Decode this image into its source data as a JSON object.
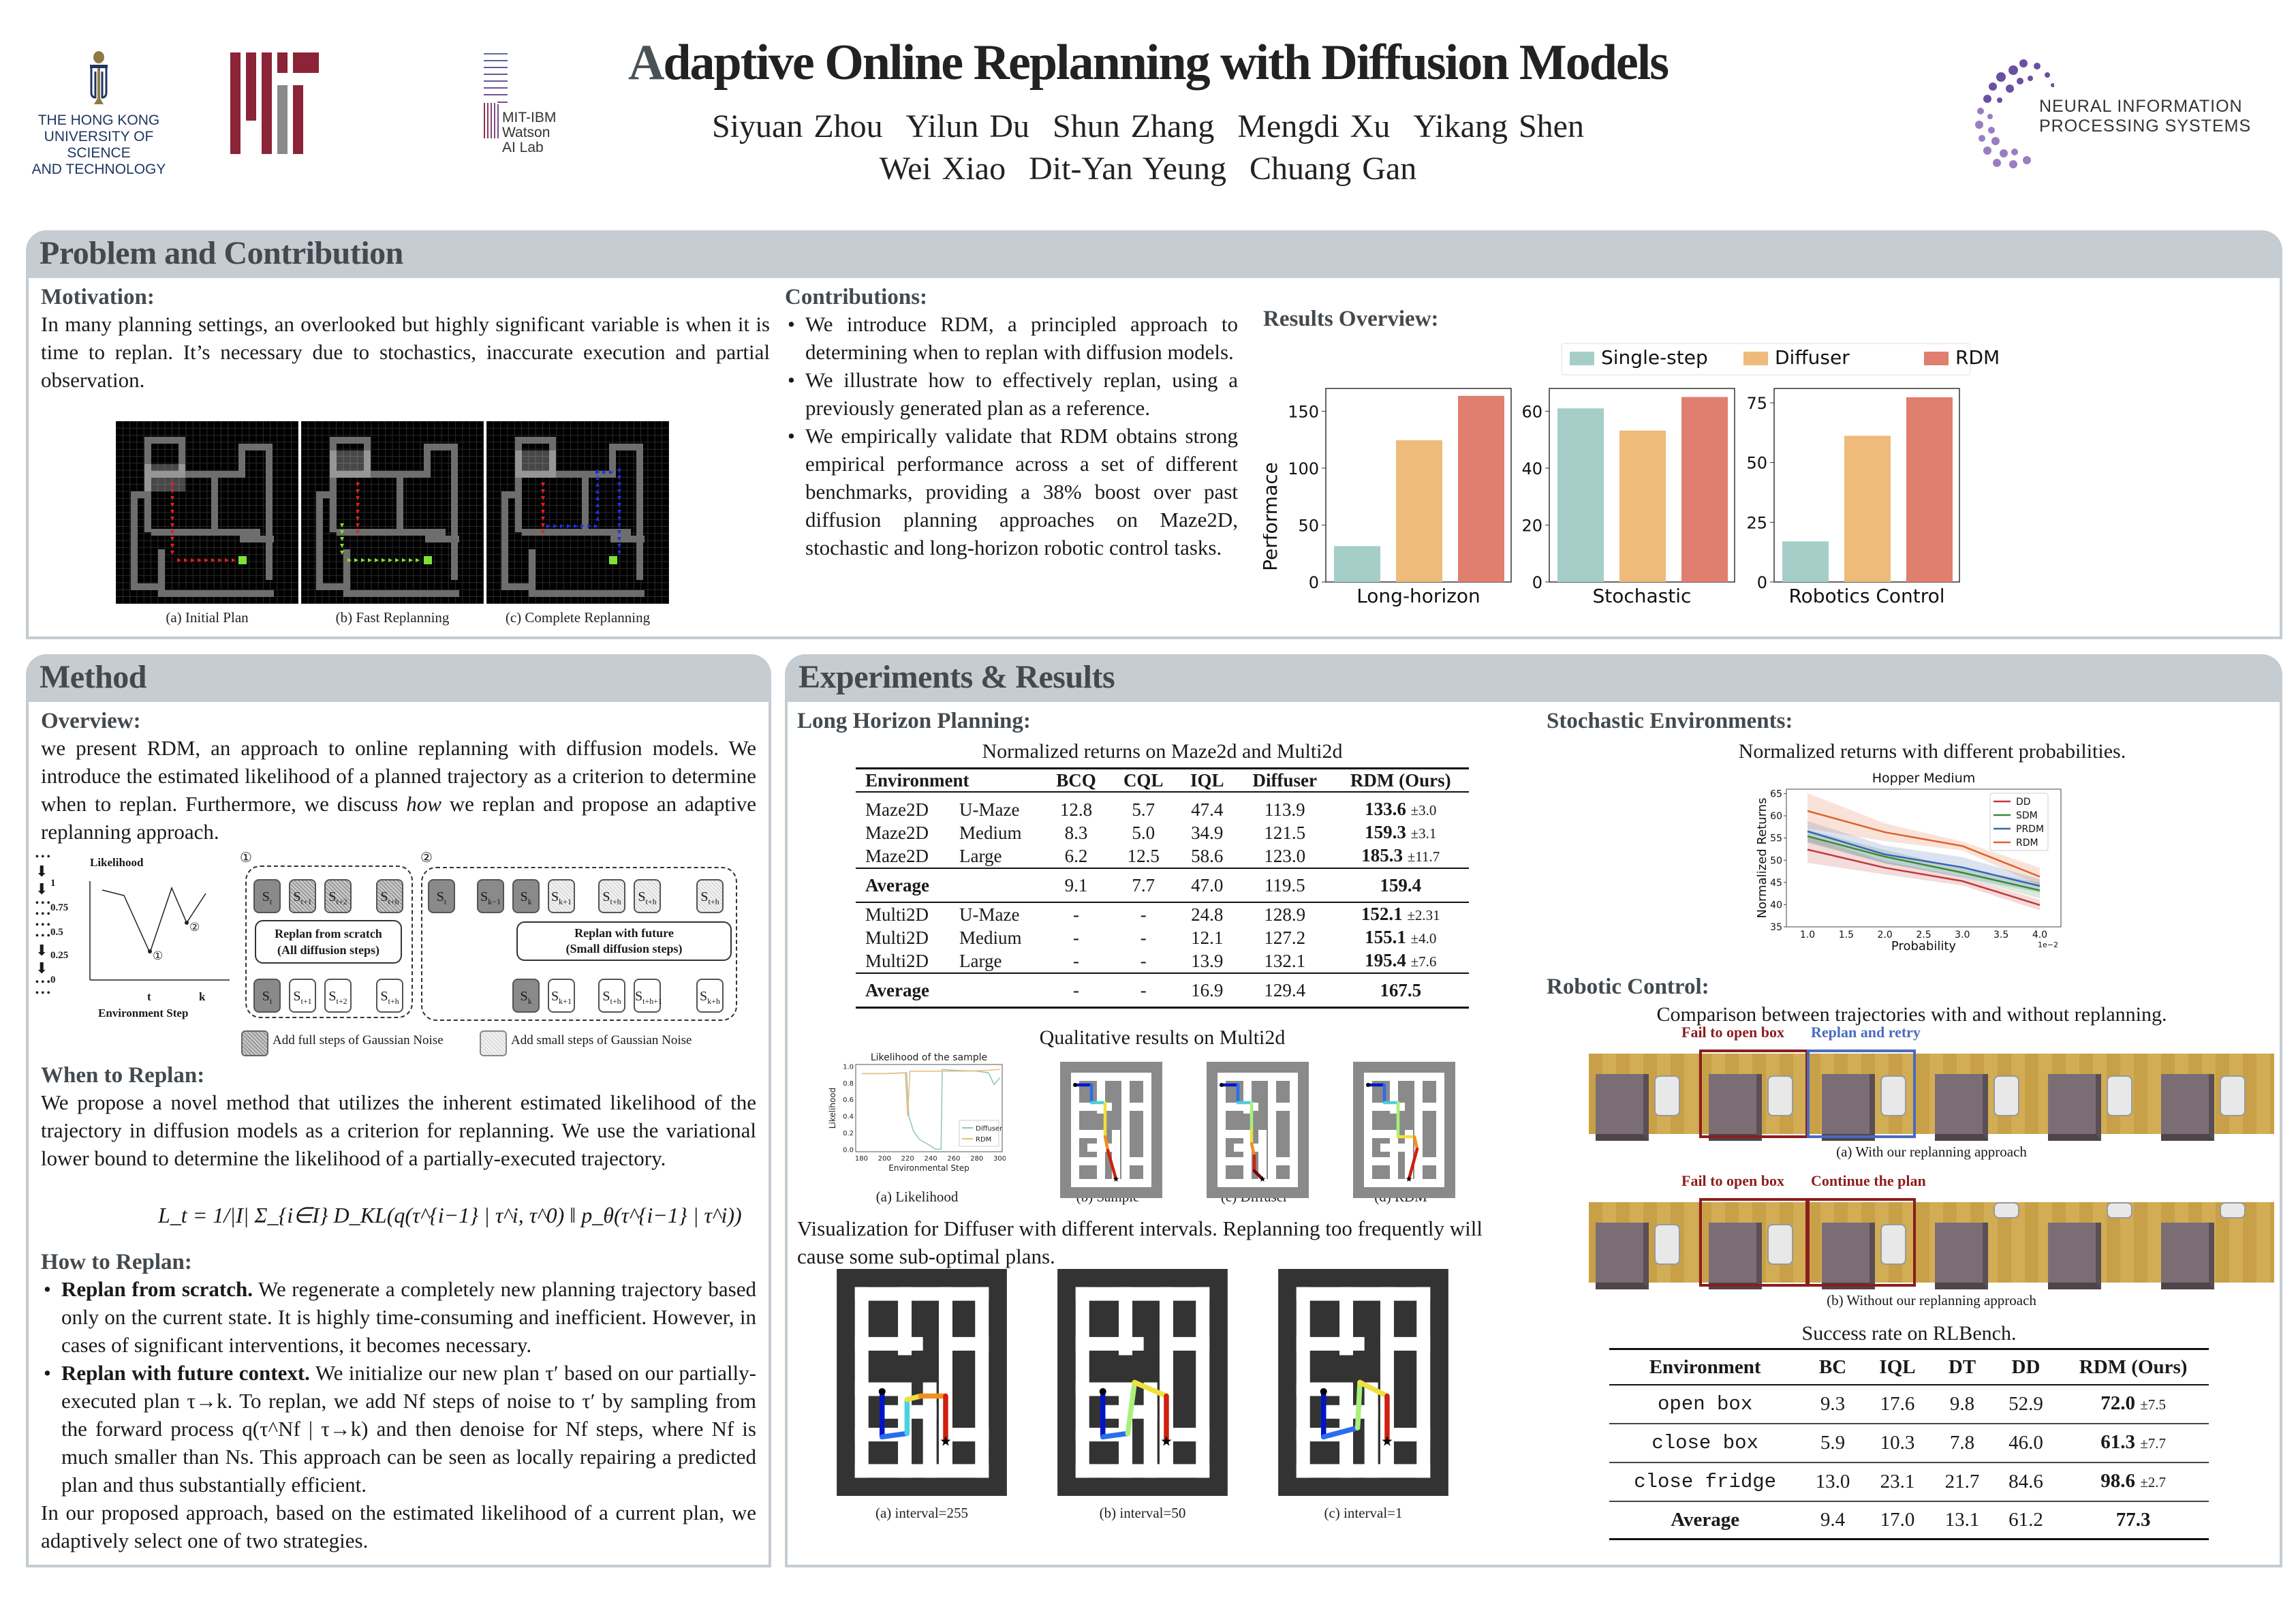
{
  "header": {
    "title_first_letter": "A",
    "title_rest": "daptive Online Replanning with Diffusion Models",
    "authors_line1": [
      "Siyuan Zhou",
      "Yilun Du",
      "Shun Zhang",
      "Mengdi Xu",
      "Yikang Shen"
    ],
    "authors_line2": [
      "Wei Xiao",
      "Dit-Yan Yeung",
      "Chuang Gan"
    ],
    "logos": {
      "hkust": [
        "THE HONG KONG",
        "UNIVERSITY OF SCIENCE",
        "AND TECHNOLOGY"
      ],
      "mit_ibm": [
        "MIT-IBM",
        "Watson",
        "AI Lab"
      ],
      "neurips": [
        "NEURAL INFORMATION",
        "PROCESSING SYSTEMS"
      ]
    }
  },
  "problem": {
    "heading": "Problem and Contribution",
    "motivation_title": "Motivation:",
    "motivation_text": "In many planning settings, an overlooked but highly significant variable is when it is time to replan. It’s necessary due to stochastics, inaccurate execution and partial observation.",
    "figure_captions": [
      "(a) Initial Plan",
      "(b) Fast Replanning",
      "(c) Complete Replanning"
    ],
    "contributions_title": "Contributions:",
    "contributions": [
      "We introduce RDM, a principled approach to determining when to replan with diffusion models.",
      "We illustrate how to effectively replan, using a previously generated plan as a reference.",
      "We empirically validate that RDM obtains strong empirical performance across a set of different benchmarks, providing a 38% boost over past diffusion planning approaches on Maze2D, stochastic and long-horizon robotic control tasks."
    ],
    "results_title": "Results Overview:"
  },
  "method": {
    "heading": "Method",
    "overview_title": "Overview:",
    "overview_text_1": "we present RDM, an approach to online replanning with diffusion models. We introduce the estimated likelihood of a planned trajectory as a criterion to determine when to replan.  Furthermore, we discuss ",
    "overview_text_em": "how",
    "overview_text_2": " we replan and propose an adaptive replanning approach.",
    "diagram": {
      "plot_title": "Likelihood",
      "plot_xlabel": "Environment Step",
      "plot_yticks": [
        "1",
        "0.75",
        "0.5",
        "0.25",
        "0"
      ],
      "plot_xticks": [
        "t",
        "k"
      ],
      "marker1": "①",
      "marker2": "②",
      "box1_title": "Replan from scratch",
      "box1_sub": "(All diffusion steps)",
      "box2_title": "Replan with future",
      "box2_sub": "(Small diffusion steps)",
      "legend_full": "Add full steps of Gaussian Noise",
      "legend_small": "Add small steps of Gaussian Noise",
      "ellipsis": "• • •",
      "s1_top": [
        "S",
        "S",
        "S",
        "S"
      ],
      "s1_top_sub": [
        "t",
        "t+1",
        "t+2",
        "t+h"
      ],
      "s1_bot_sub": [
        "t",
        "t+1",
        "t+2",
        "t+h"
      ],
      "s2_top_sub": [
        "t",
        "k−1",
        "k",
        "k+1",
        "t+h",
        "t+h",
        "t+h"
      ],
      "s2_bot_sub": [
        "k",
        "k+1",
        "t+h",
        "t+h+1",
        "k+h"
      ]
    },
    "when_title": "When to Replan:",
    "when_text": "We propose a novel method that utilizes the inherent estimated likelihood of the trajectory in diffusion models as a criterion for replanning.  We use the variational lower bound to determine the likelihood of a partially-executed trajectory.",
    "formula": "L_t = 1/|I| Σ_{i∈I} D_KL(q(τ^{i−1} | τ^i, τ^0) ‖ p_θ(τ^{i−1} | τ^i))",
    "how_title": "How to Replan:",
    "how_items": [
      {
        "bold": "Replan from scratch.",
        "text": " We regenerate a completely new planning trajectory based only on the current state. It is highly time-consuming and inefficient. However, in cases of significant interventions, it becomes necessary."
      },
      {
        "bold": "Replan with future context.",
        "text": " We initialize our new plan τ′ based on our partially-executed plan τ→k. To replan, we add Nf steps of noise to τ′ by sampling from the forward process q(τ^Nf | τ→k) and then denoise for Nf steps, where Nf is much smaller than Ns.  This approach can be seen as locally repairing a predicted plan and thus substantially efficient."
      }
    ],
    "conclusion": "In our proposed approach, based on the estimated likelihood of a current plan, we adaptively select one of two strategies."
  },
  "experiments": {
    "heading": "Experiments & Results",
    "long_horizon_title": "Long Horizon Planning:",
    "maze_table": {
      "caption": "Normalized returns on Maze2d and Multi2d",
      "columns": [
        "Environment",
        "BCQ",
        "CQL",
        "IQL",
        "Diffuser",
        "RDM (Ours)"
      ],
      "group1": [
        {
          "env": "Maze2D",
          "size": "U-Maze",
          "bcq": "12.8",
          "cql": "5.7",
          "iql": "47.4",
          "diffuser": "113.9",
          "rdm": "133.6",
          "pm": "±3.0"
        },
        {
          "env": "Maze2D",
          "size": "Medium",
          "bcq": "8.3",
          "cql": "5.0",
          "iql": "34.9",
          "diffuser": "121.5",
          "rdm": "159.3",
          "pm": "±3.1"
        },
        {
          "env": "Maze2D",
          "size": "Large",
          "bcq": "6.2",
          "cql": "12.5",
          "iql": "58.6",
          "diffuser": "123.0",
          "rdm": "185.3",
          "pm": "±11.7"
        }
      ],
      "avg1": {
        "label": "Average",
        "bcq": "9.1",
        "cql": "7.7",
        "iql": "47.0",
        "diffuser": "119.5",
        "rdm": "159.4"
      },
      "group2": [
        {
          "env": "Multi2D",
          "size": "U-Maze",
          "bcq": "-",
          "cql": "-",
          "iql": "24.8",
          "diffuser": "128.9",
          "rdm": "152.1",
          "pm": "±2.31"
        },
        {
          "env": "Multi2D",
          "size": "Medium",
          "bcq": "-",
          "cql": "-",
          "iql": "12.1",
          "diffuser": "127.2",
          "rdm": "155.1",
          "pm": "±4.0"
        },
        {
          "env": "Multi2D",
          "size": "Large",
          "bcq": "-",
          "cql": "-",
          "iql": "13.9",
          "diffuser": "132.1",
          "rdm": "195.4",
          "pm": "±7.6"
        }
      ],
      "avg2": {
        "label": "Average",
        "bcq": "-",
        "cql": "-",
        "iql": "16.9",
        "diffuser": "129.4",
        "rdm": "167.5"
      }
    },
    "qual_caption": "Qualitative results on Multi2d",
    "qual_sub": [
      "(a) Likelihood",
      "(b) Sample",
      "(c) Diffuser",
      "(d) RDM"
    ],
    "viz_text": "Visualization for Diffuser with different intervals. Replanning too frequently will cause some sub-optimal plans.",
    "interval_captions": [
      "(a) interval=255",
      "(b) interval=50",
      "(c) interval=1"
    ],
    "stochastic_title": "Stochastic Environments:",
    "stochastic_caption": "Normalized returns with different probabilities.",
    "robotic_title": "Robotic Control:",
    "robotic_caption": "Comparison between trajectories with and without replanning.",
    "robot_a_labels": [
      "Fail to open box",
      "Replan and retry"
    ],
    "robot_a_caption": "(a) With our replanning approach",
    "robot_b_labels": [
      "Fail to open box",
      "Continue the plan"
    ],
    "robot_b_caption": "(b) Without our replanning approach",
    "rlbench_table": {
      "caption": "Success rate on RLBench.",
      "columns": [
        "Environment",
        "BC",
        "IQL",
        "DT",
        "DD",
        "RDM (Ours)"
      ],
      "rows": [
        {
          "env": "open box",
          "bc": "9.3",
          "iql": "17.6",
          "dt": "9.8",
          "dd": "52.9",
          "rdm": "72.0",
          "pm": "±7.5"
        },
        {
          "env": "close box",
          "bc": "5.9",
          "iql": "10.3",
          "dt": "7.8",
          "dd": "46.0",
          "rdm": "61.3",
          "pm": "±7.7"
        },
        {
          "env": "close fridge",
          "bc": "13.0",
          "iql": "23.1",
          "dt": "21.7",
          "dd": "84.6",
          "rdm": "98.6",
          "pm": "±2.7"
        }
      ],
      "avg": {
        "env": "Average",
        "bc": "9.4",
        "iql": "17.0",
        "dt": "13.1",
        "dd": "61.2",
        "rdm": "77.3"
      }
    }
  },
  "chart_data": [
    {
      "type": "bar",
      "title": "Results Overview:",
      "ylabel": "Performace",
      "legend": [
        "Single-step",
        "Diffuser",
        "RDM"
      ],
      "legend_position": "top-center",
      "colors": [
        "#a5cec9",
        "#eebb7b",
        "#e07e6f"
      ],
      "panels": [
        {
          "category": "Long-horizon",
          "values": [
            31.5,
            124.5,
            163.5
          ],
          "ylim": [
            0,
            170
          ],
          "yticks": [
            "0",
            "50",
            "100",
            "150"
          ]
        },
        {
          "category": "Stochastic",
          "values": [
            61.0,
            53.2,
            65.0
          ],
          "ylim": [
            0,
            68
          ],
          "yticks": [
            "0",
            "20",
            "40",
            "60"
          ]
        },
        {
          "category": "Robotics Control",
          "values": [
            17.0,
            61.2,
            77.3
          ],
          "ylim": [
            0,
            81
          ],
          "yticks": [
            "0",
            "25",
            "50",
            "75"
          ]
        }
      ]
    },
    {
      "type": "line",
      "title": "Hopper Medium",
      "xlabel": "Probability",
      "ylabel": "Normalized Returns",
      "x": [
        1.0,
        2.0,
        3.0,
        4.0
      ],
      "x_scale_note": "1e−2",
      "xticks": [
        "1.0",
        "1.5",
        "2.0",
        "2.5",
        "3.0",
        "3.5",
        "4.0"
      ],
      "yticks": [
        "35",
        "40",
        "45",
        "50",
        "55",
        "60",
        "65"
      ],
      "xlim": [
        0.85,
        4.15
      ],
      "ylim": [
        35,
        66
      ],
      "legend_position": "top-right",
      "series": [
        {
          "name": "DD",
          "color": "#c0393b",
          "values": [
            52.4,
            48.3,
            45.3,
            39.9
          ],
          "band": [
            3.0,
            1.5,
            1.0,
            1.2
          ]
        },
        {
          "name": "SDM",
          "color": "#3a8a2e",
          "values": [
            55.4,
            50.8,
            47.2,
            43.2
          ],
          "band": [
            1.5,
            1.5,
            1.0,
            1.8
          ]
        },
        {
          "name": "PRDM",
          "color": "#3a62b5",
          "values": [
            56.5,
            51.3,
            48.4,
            44.2
          ],
          "band": [
            2.3,
            2.0,
            2.3,
            1.5
          ]
        },
        {
          "name": "RDM",
          "color": "#e0622a",
          "values": [
            61.1,
            56.3,
            53.2,
            46.3
          ],
          "band": [
            4.0,
            2.0,
            1.0,
            2.0
          ]
        }
      ]
    },
    {
      "type": "line",
      "title": "Likelihood of the sample",
      "xlabel": "Environmental Step",
      "ylabel": "Likelihood",
      "xticks": [
        "180",
        "200",
        "220",
        "240",
        "260",
        "280",
        "300"
      ],
      "yticks": [
        "0.0",
        "0.2",
        "0.4",
        "0.6",
        "0.8",
        "1.0"
      ],
      "xlim": [
        175,
        302
      ],
      "ylim": [
        -0.03,
        1.02
      ],
      "legend_position": "bottom-right",
      "series": [
        {
          "name": "Diffuser",
          "color": "#8fc5bd",
          "x": [
            180,
            200,
            219,
            221,
            225,
            230,
            240,
            244,
            249,
            250,
            260,
            280,
            290,
            295,
            300
          ],
          "values": [
            0.91,
            0.91,
            0.92,
            0.4,
            0.22,
            0.12,
            0.04,
            0.0,
            0.0,
            0.96,
            0.95,
            0.94,
            0.92,
            0.78,
            0.86
          ]
        },
        {
          "name": "RDM",
          "color": "#eebb7b",
          "x": [
            180,
            200,
            218,
            220,
            222,
            230,
            250,
            270,
            290,
            300
          ],
          "values": [
            0.91,
            0.91,
            0.92,
            0.4,
            0.94,
            0.94,
            0.94,
            0.94,
            0.95,
            0.96
          ]
        }
      ]
    }
  ]
}
